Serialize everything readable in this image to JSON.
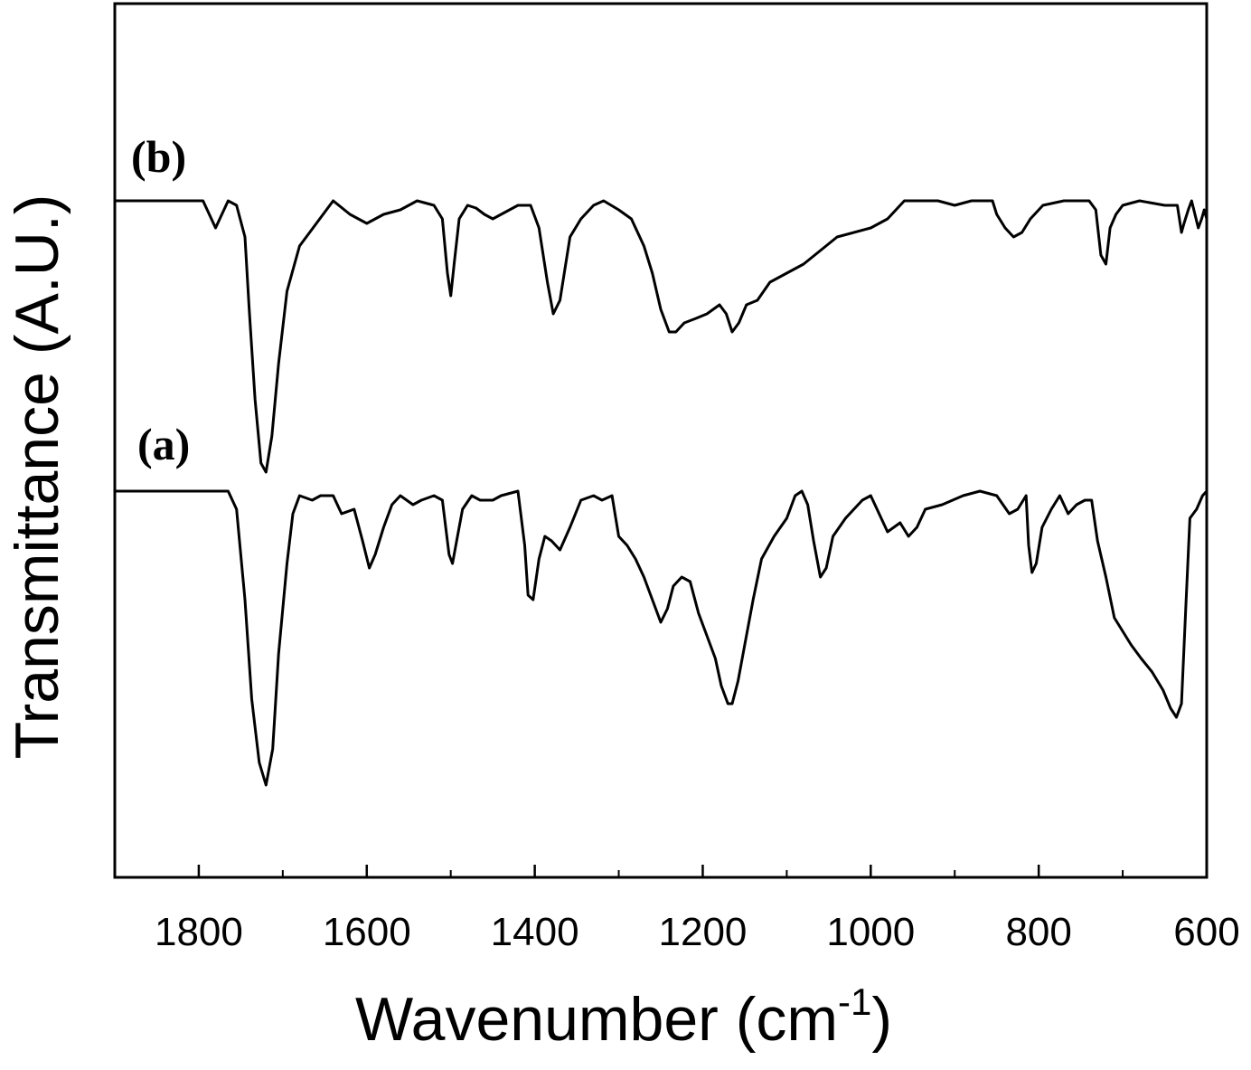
{
  "chart_data": {
    "type": "line",
    "title": "",
    "xlabel": "Wavenumber (cm",
    "xlabel_superscript": "-1",
    "xlabel_suffix": ")",
    "ylabel": "Transmittance (A.U.)",
    "xlim": [
      1900,
      600
    ],
    "x_reversed": true,
    "y_ticks_shown": false,
    "grid": false,
    "line_color": "#000000",
    "x_ticks": [
      1800,
      1600,
      1400,
      1200,
      1000,
      800,
      600
    ],
    "x_tick_labels": [
      "1800",
      "1600",
      "1400",
      "1200",
      "1000",
      "800",
      "600"
    ],
    "x_minor_ticks": [
      1900,
      1700,
      1500,
      1300,
      1100,
      900,
      700
    ],
    "series": [
      {
        "name": "(b)",
        "baseline": 222,
        "points": [
          [
            1900,
            0
          ],
          [
            1830,
            0
          ],
          [
            1795,
            0
          ],
          [
            1780,
            30
          ],
          [
            1765,
            0
          ],
          [
            1755,
            5
          ],
          [
            1745,
            40
          ],
          [
            1740,
            120
          ],
          [
            1733,
            220
          ],
          [
            1726,
            290
          ],
          [
            1720,
            300
          ],
          [
            1713,
            260
          ],
          [
            1705,
            180
          ],
          [
            1695,
            100
          ],
          [
            1680,
            50
          ],
          [
            1660,
            25
          ],
          [
            1640,
            0
          ],
          [
            1620,
            15
          ],
          [
            1600,
            25
          ],
          [
            1580,
            15
          ],
          [
            1560,
            10
          ],
          [
            1540,
            0
          ],
          [
            1520,
            5
          ],
          [
            1510,
            20
          ],
          [
            1504,
            80
          ],
          [
            1500,
            105
          ],
          [
            1496,
            70
          ],
          [
            1490,
            20
          ],
          [
            1480,
            5
          ],
          [
            1470,
            8
          ],
          [
            1460,
            15
          ],
          [
            1450,
            20
          ],
          [
            1440,
            15
          ],
          [
            1420,
            5
          ],
          [
            1405,
            5
          ],
          [
            1395,
            30
          ],
          [
            1385,
            90
          ],
          [
            1378,
            125
          ],
          [
            1370,
            110
          ],
          [
            1358,
            40
          ],
          [
            1345,
            20
          ],
          [
            1330,
            5
          ],
          [
            1318,
            0
          ],
          [
            1300,
            10
          ],
          [
            1285,
            20
          ],
          [
            1270,
            50
          ],
          [
            1260,
            80
          ],
          [
            1250,
            120
          ],
          [
            1240,
            145
          ],
          [
            1232,
            145
          ],
          [
            1222,
            135
          ],
          [
            1208,
            130
          ],
          [
            1195,
            125
          ],
          [
            1180,
            115
          ],
          [
            1172,
            125
          ],
          [
            1165,
            145
          ],
          [
            1157,
            135
          ],
          [
            1148,
            115
          ],
          [
            1135,
            110
          ],
          [
            1120,
            90
          ],
          [
            1100,
            80
          ],
          [
            1080,
            70
          ],
          [
            1060,
            55
          ],
          [
            1040,
            40
          ],
          [
            1000,
            30
          ],
          [
            980,
            20
          ],
          [
            960,
            0
          ],
          [
            920,
            0
          ],
          [
            900,
            5
          ],
          [
            880,
            0
          ],
          [
            855,
            0
          ],
          [
            850,
            15
          ],
          [
            840,
            30
          ],
          [
            830,
            40
          ],
          [
            820,
            35
          ],
          [
            810,
            20
          ],
          [
            795,
            5
          ],
          [
            770,
            0
          ],
          [
            740,
            0
          ],
          [
            732,
            10
          ],
          [
            726,
            60
          ],
          [
            720,
            70
          ],
          [
            715,
            30
          ],
          [
            708,
            15
          ],
          [
            700,
            5
          ],
          [
            680,
            0
          ],
          [
            650,
            5
          ],
          [
            635,
            5
          ],
          [
            630,
            35
          ],
          [
            627,
            25
          ],
          [
            622,
            10
          ],
          [
            618,
            0
          ],
          [
            614,
            15
          ],
          [
            610,
            30
          ],
          [
            606,
            20
          ],
          [
            603,
            10
          ],
          [
            600,
            20
          ]
        ]
      },
      {
        "name": "(a)",
        "baseline": 543,
        "points": [
          [
            1900,
            0
          ],
          [
            1830,
            0
          ],
          [
            1780,
            0
          ],
          [
            1765,
            0
          ],
          [
            1755,
            20
          ],
          [
            1745,
            120
          ],
          [
            1737,
            230
          ],
          [
            1728,
            300
          ],
          [
            1720,
            325
          ],
          [
            1712,
            285
          ],
          [
            1705,
            180
          ],
          [
            1695,
            80
          ],
          [
            1688,
            25
          ],
          [
            1680,
            5
          ],
          [
            1665,
            10
          ],
          [
            1655,
            5
          ],
          [
            1640,
            5
          ],
          [
            1630,
            25
          ],
          [
            1615,
            20
          ],
          [
            1605,
            55
          ],
          [
            1597,
            85
          ],
          [
            1590,
            70
          ],
          [
            1580,
            40
          ],
          [
            1570,
            15
          ],
          [
            1560,
            5
          ],
          [
            1545,
            15
          ],
          [
            1535,
            10
          ],
          [
            1520,
            5
          ],
          [
            1510,
            10
          ],
          [
            1502,
            70
          ],
          [
            1498,
            80
          ],
          [
            1493,
            55
          ],
          [
            1486,
            20
          ],
          [
            1475,
            5
          ],
          [
            1465,
            10
          ],
          [
            1450,
            10
          ],
          [
            1440,
            5
          ],
          [
            1420,
            0
          ],
          [
            1412,
            60
          ],
          [
            1408,
            115
          ],
          [
            1402,
            120
          ],
          [
            1395,
            75
          ],
          [
            1388,
            50
          ],
          [
            1380,
            55
          ],
          [
            1370,
            65
          ],
          [
            1358,
            40
          ],
          [
            1345,
            10
          ],
          [
            1330,
            5
          ],
          [
            1320,
            10
          ],
          [
            1308,
            5
          ],
          [
            1300,
            50
          ],
          [
            1290,
            60
          ],
          [
            1280,
            75
          ],
          [
            1270,
            95
          ],
          [
            1260,
            120
          ],
          [
            1250,
            145
          ],
          [
            1242,
            130
          ],
          [
            1235,
            105
          ],
          [
            1225,
            95
          ],
          [
            1215,
            100
          ],
          [
            1205,
            135
          ],
          [
            1195,
            160
          ],
          [
            1185,
            185
          ],
          [
            1178,
            215
          ],
          [
            1170,
            235
          ],
          [
            1165,
            235
          ],
          [
            1158,
            210
          ],
          [
            1150,
            170
          ],
          [
            1140,
            120
          ],
          [
            1130,
            75
          ],
          [
            1115,
            50
          ],
          [
            1100,
            30
          ],
          [
            1090,
            5
          ],
          [
            1082,
            0
          ],
          [
            1075,
            15
          ],
          [
            1068,
            55
          ],
          [
            1060,
            95
          ],
          [
            1053,
            85
          ],
          [
            1045,
            50
          ],
          [
            1030,
            30
          ],
          [
            1010,
            10
          ],
          [
            1000,
            5
          ],
          [
            990,
            25
          ],
          [
            980,
            45
          ],
          [
            965,
            35
          ],
          [
            955,
            50
          ],
          [
            945,
            40
          ],
          [
            935,
            20
          ],
          [
            915,
            15
          ],
          [
            890,
            5
          ],
          [
            870,
            0
          ],
          [
            850,
            5
          ],
          [
            835,
            25
          ],
          [
            825,
            20
          ],
          [
            815,
            5
          ],
          [
            812,
            60
          ],
          [
            808,
            90
          ],
          [
            803,
            80
          ],
          [
            796,
            40
          ],
          [
            785,
            20
          ],
          [
            775,
            5
          ],
          [
            765,
            25
          ],
          [
            755,
            15
          ],
          [
            745,
            10
          ],
          [
            737,
            10
          ],
          [
            730,
            55
          ],
          [
            720,
            95
          ],
          [
            710,
            140
          ],
          [
            700,
            155
          ],
          [
            690,
            170
          ],
          [
            678,
            185
          ],
          [
            665,
            200
          ],
          [
            652,
            220
          ],
          [
            643,
            240
          ],
          [
            636,
            250
          ],
          [
            630,
            235
          ],
          [
            625,
            130
          ],
          [
            620,
            30
          ],
          [
            612,
            20
          ],
          [
            605,
            5
          ],
          [
            600,
            0
          ]
        ]
      }
    ]
  }
}
